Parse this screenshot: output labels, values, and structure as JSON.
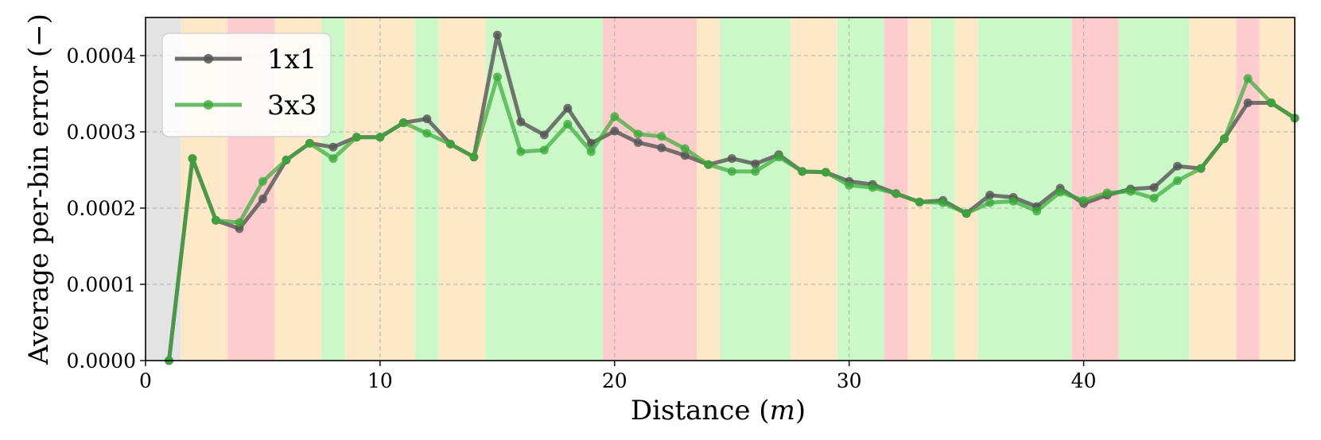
{
  "chart_data": {
    "type": "line",
    "title": "",
    "xlabel": "Distance (m)",
    "ylabel": "Average per-bin error (−)",
    "xlim": [
      0,
      49
    ],
    "ylim": [
      0,
      0.00045
    ],
    "xticks": [
      0,
      10,
      20,
      30,
      40
    ],
    "yticks": [
      0,
      0.0001,
      0.0002,
      0.0003,
      0.0004
    ],
    "xtick_labels": [
      "0",
      "10",
      "20",
      "30",
      "40"
    ],
    "ytick_labels": [
      "0.0000",
      "0.0001",
      "0.0002",
      "0.0003",
      "0.0004"
    ],
    "grid": true,
    "legend_position": "top-left",
    "x": [
      1,
      2,
      3,
      4,
      5,
      6,
      7,
      8,
      9,
      10,
      11,
      12,
      13,
      14,
      15,
      16,
      17,
      18,
      19,
      20,
      21,
      22,
      23,
      24,
      25,
      26,
      27,
      28,
      29,
      30,
      31,
      32,
      33,
      34,
      35,
      36,
      37,
      38,
      39,
      40,
      41,
      42,
      43,
      44,
      45,
      46,
      47,
      48,
      49
    ],
    "series": [
      {
        "name": "1x1",
        "color": "#555555",
        "values": [
          0.0,
          0.000265,
          0.000184,
          0.000173,
          0.000212,
          0.000263,
          0.000285,
          0.00028,
          0.000293,
          0.000293,
          0.000312,
          0.000317,
          0.000284,
          0.000267,
          0.000427,
          0.000313,
          0.000296,
          0.000331,
          0.000285,
          0.000301,
          0.000286,
          0.000279,
          0.000269,
          0.000257,
          0.000265,
          0.000258,
          0.00027,
          0.000248,
          0.000247,
          0.000235,
          0.000231,
          0.000219,
          0.000208,
          0.00021,
          0.000193,
          0.000217,
          0.000214,
          0.000202,
          0.000226,
          0.000206,
          0.000217,
          0.000225,
          0.000227,
          0.000255,
          0.000252,
          0.000291,
          0.000338,
          0.000338,
          0.000318
        ]
      },
      {
        "name": "3x3",
        "color": "#3aa83a",
        "values": [
          0.0,
          0.000265,
          0.000184,
          0.000181,
          0.000235,
          0.000263,
          0.000285,
          0.000265,
          0.000293,
          0.000293,
          0.000312,
          0.000298,
          0.000284,
          0.000267,
          0.000372,
          0.000274,
          0.000276,
          0.00031,
          0.000274,
          0.00032,
          0.000297,
          0.000294,
          0.000278,
          0.000257,
          0.000248,
          0.000248,
          0.000267,
          0.000248,
          0.000247,
          0.00023,
          0.000227,
          0.000219,
          0.000208,
          0.000207,
          0.000193,
          0.000207,
          0.000209,
          0.000196,
          0.000221,
          0.00021,
          0.00022,
          0.000222,
          0.000213,
          0.000236,
          0.000252,
          0.000291,
          0.00037,
          0.000338,
          0.000318
        ]
      }
    ],
    "background_bands": [
      {
        "from": 0.0,
        "to": 1.5,
        "color": "#e3e3e3"
      },
      {
        "from": 1.5,
        "to": 3.5,
        "color": "#fde8c8"
      },
      {
        "from": 3.5,
        "to": 5.5,
        "color": "#fdcccc"
      },
      {
        "from": 5.5,
        "to": 7.5,
        "color": "#fde8c8"
      },
      {
        "from": 7.5,
        "to": 8.5,
        "color": "#ccf7c8"
      },
      {
        "from": 8.5,
        "to": 11.5,
        "color": "#fde8c8"
      },
      {
        "from": 11.5,
        "to": 12.5,
        "color": "#ccf7c8"
      },
      {
        "from": 12.5,
        "to": 14.5,
        "color": "#fde8c8"
      },
      {
        "from": 14.5,
        "to": 19.5,
        "color": "#ccf7c8"
      },
      {
        "from": 19.5,
        "to": 23.5,
        "color": "#fdcccc"
      },
      {
        "from": 23.5,
        "to": 24.5,
        "color": "#fde8c8"
      },
      {
        "from": 24.5,
        "to": 27.5,
        "color": "#ccf7c8"
      },
      {
        "from": 27.5,
        "to": 29.5,
        "color": "#fde8c8"
      },
      {
        "from": 29.5,
        "to": 31.5,
        "color": "#ccf7c8"
      },
      {
        "from": 31.5,
        "to": 32.5,
        "color": "#fdcccc"
      },
      {
        "from": 32.5,
        "to": 33.5,
        "color": "#fde8c8"
      },
      {
        "from": 33.5,
        "to": 34.5,
        "color": "#ccf7c8"
      },
      {
        "from": 34.5,
        "to": 35.5,
        "color": "#fde8c8"
      },
      {
        "from": 35.5,
        "to": 39.5,
        "color": "#ccf7c8"
      },
      {
        "from": 39.5,
        "to": 41.5,
        "color": "#fdcccc"
      },
      {
        "from": 41.5,
        "to": 44.5,
        "color": "#ccf7c8"
      },
      {
        "from": 44.5,
        "to": 46.5,
        "color": "#fde8c8"
      },
      {
        "from": 46.5,
        "to": 47.5,
        "color": "#fdcccc"
      },
      {
        "from": 47.5,
        "to": 49.0,
        "color": "#fde8c8"
      }
    ]
  }
}
